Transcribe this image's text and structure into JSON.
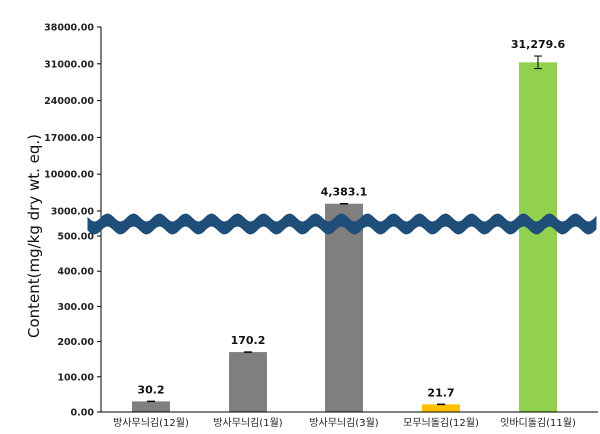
{
  "chart_data": {
    "type": "bar",
    "title": "",
    "ylabel": "Content(mg/kg dry wt. eq.)",
    "xlabel": "",
    "axis_break": true,
    "lower_ylim": [
      0,
      500
    ],
    "upper_ylim": [
      3000,
      38000
    ],
    "yticks_lower": [
      "0.00",
      "100.00",
      "200.00",
      "300.00",
      "400.00",
      "500.00"
    ],
    "yticks_upper": [
      "3000.00",
      "10000.00",
      "17000.00",
      "24000.00",
      "31000.00",
      "38000.00"
    ],
    "categories": [
      "방사무늬김(12월)",
      "방사무늬김(1월)",
      "방사무늬김(3월)",
      "모무늬돌김(12월)",
      "잇바디돌김(11월)"
    ],
    "values": [
      30.2,
      170.2,
      4383.1,
      21.7,
      31279.6
    ],
    "value_labels": [
      "30.2",
      "170.2",
      "4,383.1",
      "21.7",
      "31,279.6"
    ],
    "error": [
      0,
      0,
      0,
      0,
      1200
    ],
    "colors": [
      "#808080",
      "#808080",
      "#808080",
      "#FFC000",
      "#92D050"
    ],
    "break_color": "#1F4E79",
    "grid": false
  }
}
